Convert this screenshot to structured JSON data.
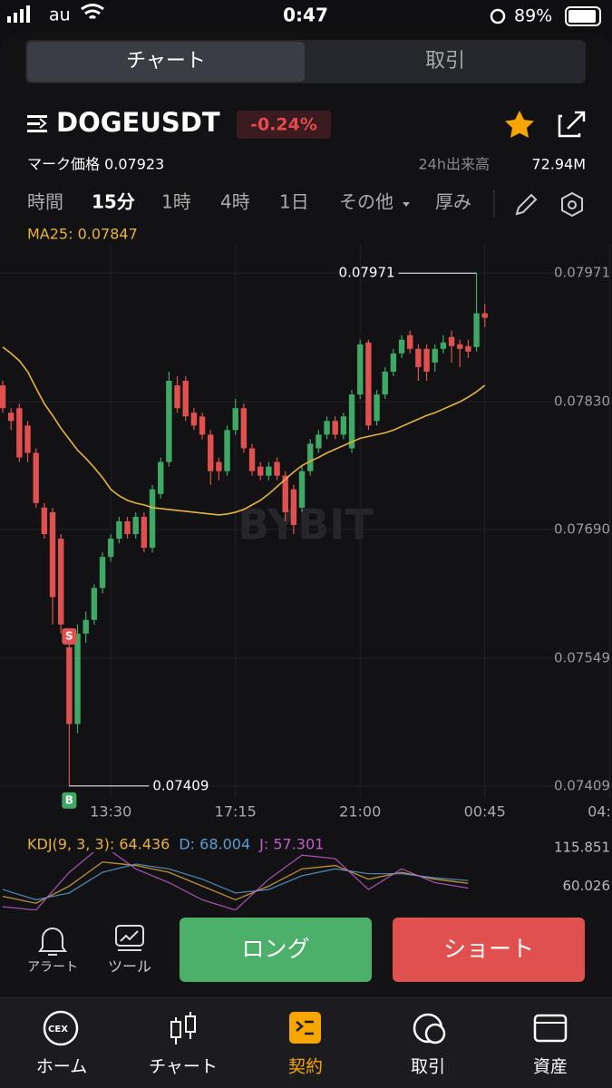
{
  "status_bar": {
    "carrier": "au",
    "time": "0:47",
    "battery": "89%"
  },
  "tabs": [
    "チャート",
    "取引"
  ],
  "header": {
    "symbol": "DOGEUSDT",
    "change": "-0.24%",
    "mark_label": "マーク価格 0.07923",
    "volume_label": "24h出来高",
    "volume": "72.94M"
  },
  "intervals": [
    "時間",
    "15分",
    "1時",
    "4時",
    "1日",
    "その他",
    "厚み"
  ],
  "chart_data": [
    {
      "type": "candlestick",
      "ma_label": "MA25: 0.07847",
      "watermark": "BYBIT",
      "up_color": "#3fa864",
      "down_color": "#e0504f",
      "open": [
        0.07848,
        0.07818,
        0.07823,
        0.07804,
        0.07774,
        0.07714,
        0.07709,
        0.0768,
        0.07561,
        0.07477,
        0.07576,
        0.07591,
        0.07626,
        0.0766,
        0.0768,
        0.07699,
        0.07685,
        0.07704,
        0.0767,
        0.07729,
        0.07764,
        0.07848,
        0.07853,
        0.07818,
        0.07814,
        0.07794,
        0.07764,
        0.07754,
        0.07799,
        0.07823,
        0.07779,
        0.07759,
        0.07749,
        0.07764,
        0.07749,
        0.07734,
        0.07714,
        0.07754,
        0.07779,
        0.07794,
        0.07809,
        0.07794,
        0.07779,
        0.07838,
        0.07895,
        0.07809,
        0.07838,
        0.07863,
        0.07883,
        0.07903,
        0.07888,
        0.07888,
        0.07873,
        0.07888,
        0.07901,
        0.07893,
        0.07891,
        0.0789,
        0.07927
      ],
      "high": [
        0.07853,
        0.07823,
        0.07828,
        0.07809,
        0.07779,
        0.07719,
        0.07714,
        0.07685,
        0.07576,
        0.07586,
        0.076,
        0.0763,
        0.07665,
        0.07685,
        0.07704,
        0.07704,
        0.07709,
        0.07709,
        0.07739,
        0.07769,
        0.07863,
        0.07858,
        0.07858,
        0.07823,
        0.07818,
        0.07799,
        0.07769,
        0.07804,
        0.07833,
        0.07828,
        0.07784,
        0.07764,
        0.07764,
        0.07769,
        0.07754,
        0.07739,
        0.07759,
        0.07789,
        0.07799,
        0.07814,
        0.07814,
        0.07818,
        0.07843,
        0.07898,
        0.07898,
        0.07843,
        0.07868,
        0.07888,
        0.07903,
        0.07908,
        0.07893,
        0.07893,
        0.07893,
        0.07903,
        0.07908,
        0.07898,
        0.07898,
        0.07971,
        0.07937
      ],
      "low": [
        0.07818,
        0.07799,
        0.07764,
        0.07764,
        0.07714,
        0.0768,
        0.07586,
        0.07576,
        0.07409,
        0.07467,
        0.07566,
        0.07586,
        0.0762,
        0.07655,
        0.07675,
        0.0768,
        0.0768,
        0.07665,
        0.07665,
        0.07724,
        0.07759,
        0.07818,
        0.07809,
        0.07799,
        0.07789,
        0.07739,
        0.07744,
        0.07749,
        0.07794,
        0.07774,
        0.07749,
        0.07744,
        0.07744,
        0.07744,
        0.07699,
        0.07685,
        0.07709,
        0.07749,
        0.07774,
        0.07789,
        0.07789,
        0.07789,
        0.07774,
        0.07833,
        0.07799,
        0.07804,
        0.07833,
        0.07858,
        0.07878,
        0.07883,
        0.07853,
        0.07853,
        0.07863,
        0.07883,
        0.07873,
        0.07868,
        0.07878,
        0.07885,
        0.07912
      ],
      "close": [
        0.07823,
        0.07809,
        0.07769,
        0.07774,
        0.07719,
        0.07685,
        0.07616,
        0.07586,
        0.07477,
        0.07576,
        0.07591,
        0.07626,
        0.0766,
        0.0768,
        0.07699,
        0.07685,
        0.07704,
        0.0767,
        0.07734,
        0.07764,
        0.07853,
        0.07823,
        0.07814,
        0.07804,
        0.07794,
        0.07754,
        0.07754,
        0.07799,
        0.07823,
        0.07779,
        0.07754,
        0.07749,
        0.07759,
        0.07749,
        0.07709,
        0.07695,
        0.07754,
        0.07784,
        0.07794,
        0.07809,
        0.07794,
        0.07814,
        0.07838,
        0.07893,
        0.07804,
        0.07838,
        0.07863,
        0.07883,
        0.07898,
        0.07888,
        0.07868,
        0.07863,
        0.07888,
        0.07895,
        0.07891,
        0.07888,
        0.07885,
        0.07927,
        0.07922
      ],
      "ma": {
        "color": "#e8b33a",
        "values": [
          0.0789,
          0.07883,
          0.07875,
          0.07863,
          0.07845,
          0.07828,
          0.07815,
          0.07801,
          0.07789,
          0.07777,
          0.07768,
          0.07758,
          0.07747,
          0.07734,
          0.07727,
          0.07722,
          0.07719,
          0.07717,
          0.07714,
          0.07713,
          0.07712,
          0.07711,
          0.0771,
          0.07709,
          0.07708,
          0.07707,
          0.07706,
          0.07707,
          0.07709,
          0.07712,
          0.07717,
          0.07722,
          0.07729,
          0.07737,
          0.07745,
          0.07753,
          0.0776,
          0.07765,
          0.07769,
          0.07774,
          0.07778,
          0.07782,
          0.07786,
          0.0779,
          0.07792,
          0.07794,
          0.07796,
          0.07799,
          0.07803,
          0.07807,
          0.07811,
          0.07815,
          0.07818,
          0.07822,
          0.07826,
          0.0783,
          0.07835,
          0.07841,
          0.07848
        ]
      },
      "trade_markers": [
        "S",
        "B"
      ],
      "ylim": [
        0.07396,
        0.08002
      ],
      "yticks": [
        0.07971,
        {
          "value": 0.0783,
          "label": "0.07830"
        },
        {
          "value": 0.0769,
          "label": "0.07690"
        },
        0.07549,
        0.07409
      ],
      "xlim": [
        -0.33,
        73.3
      ],
      "xticks": [
        {
          "value": 13,
          "label": "13:30"
        },
        {
          "value": 28,
          "label": "17:15"
        },
        {
          "value": 43,
          "label": "21:00"
        },
        {
          "value": 58,
          "label": "00:45"
        },
        {
          "value": 73,
          "label": "04:"
        }
      ],
      "grid": true
    },
    {
      "type": "line",
      "x": [
        0,
        4,
        8,
        12,
        16,
        20,
        24,
        28,
        32,
        36,
        40,
        44,
        48,
        52,
        56
      ],
      "xlim": [
        -0.33,
        73.3
      ],
      "ylim": [
        30,
        129
      ],
      "yticks": [
        115.851,
        60.026
      ],
      "series": [
        {
          "name": "KDJ(9, 3, 3): 64.436",
          "color": "#e8b33a",
          "values": [
            45,
            35,
            60,
            95,
            90,
            80,
            60,
            40,
            60,
            85,
            90,
            70,
            80,
            70,
            64
          ]
        },
        {
          "name": "D: 68.004",
          "color": "#5a9fd4",
          "values": [
            55,
            40,
            50,
            80,
            92,
            85,
            70,
            50,
            55,
            75,
            85,
            78,
            78,
            72,
            68
          ]
        },
        {
          "name": "J: 57.301",
          "color": "#c35ec9",
          "values": [
            30,
            25,
            80,
            120,
            85,
            65,
            40,
            25,
            70,
            105,
            100,
            55,
            85,
            65,
            57
          ]
        }
      ]
    }
  ],
  "actions": {
    "alert": "アラート",
    "tool": "ツール",
    "long": "ロング",
    "short": "ショート"
  },
  "nav": {
    "cex": "CEX",
    "items": [
      "ホーム",
      "チャート",
      "契約",
      "取引",
      "資産"
    ]
  }
}
